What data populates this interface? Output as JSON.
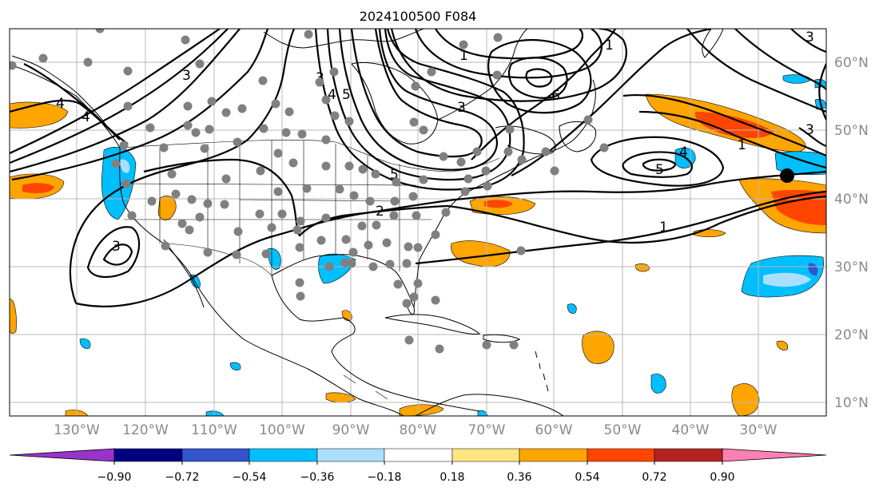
{
  "title": "2024100500 F084",
  "longitude_labels": [
    "130°W",
    "120°W",
    "110°W",
    "100°W",
    "90°W",
    "80°W",
    "70°W",
    "60°W",
    "50°W",
    "40°W",
    "30°W"
  ],
  "latitude_labels": [
    "60°N",
    "50°N",
    "40°N",
    "30°N",
    "20°N",
    "10°N"
  ],
  "contour_labels": [
    "1",
    "2",
    "3",
    "4",
    "5",
    "6",
    "1",
    "2",
    "3",
    "5",
    "4",
    "1",
    "3"
  ],
  "colorbar": {
    "tick_labels": [
      "−0.90",
      "−0.72",
      "−0.54",
      "−0.36",
      "−0.18",
      "0.18",
      "0.36",
      "0.54",
      "0.72",
      "0.90"
    ],
    "colors": [
      "#9933cc",
      "#000080",
      "#3355cc",
      "#00bfff",
      "#aadfff",
      "#ffffff",
      "#ffe680",
      "#ffa500",
      "#ff4500",
      "#b22222",
      "#ff80b3"
    ]
  },
  "marker_color": "#808080",
  "storm_marker_color": "#000000"
}
